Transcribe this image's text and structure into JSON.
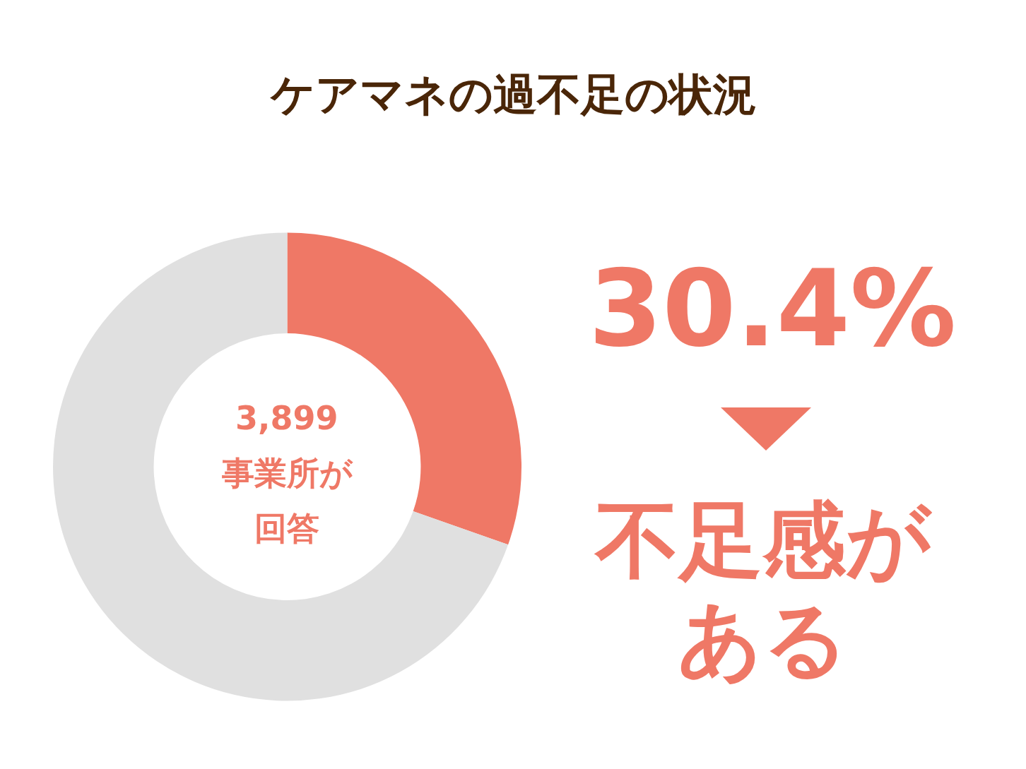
{
  "chart_data": {
    "type": "donut",
    "title": "ケアマネの過不足の状況",
    "categories": [
      null,
      null
    ],
    "values": [
      30.4,
      69.6
    ],
    "colors": [
      "#ef7866",
      "#e0e0e0"
    ],
    "legend": false,
    "annotations": [
      "3,899",
      "事業所が",
      "回答",
      "30.4%",
      "不足感が",
      "ある"
    ]
  }
}
